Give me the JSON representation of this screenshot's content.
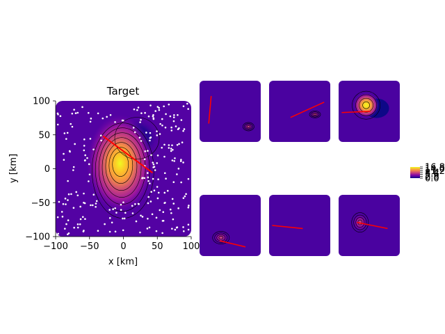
{
  "chart_data": [
    {
      "type": "heatmap",
      "title": "Target",
      "xlabel": "x [km]",
      "ylabel": "y [km]",
      "xlim": [
        -100,
        100
      ],
      "ylim": [
        -100,
        100
      ],
      "x_ticks": [
        "−100",
        "−50",
        "0",
        "50",
        "100"
      ],
      "y_ticks": [
        "100",
        "50",
        "0",
        "−50",
        "−100"
      ],
      "grid": false,
      "colormap": "plasma",
      "fault_trace": [
        [
          -30,
          48
        ],
        [
          43,
          -6
        ]
      ],
      "peak": [
        -5,
        8
      ],
      "trough": [
        20,
        45
      ],
      "station_count": 300
    },
    {
      "type": "heatmap",
      "panels": [
        {
          "fault_line": [
            [
              0.15,
              0.3
            ],
            [
              0.19,
              0.75
            ]
          ],
          "has_contours": true
        },
        {
          "fault_line": [
            [
              0.35,
              0.4
            ],
            [
              0.9,
              0.65
            ]
          ],
          "has_contours": true
        },
        {
          "fault_line": [
            [
              0.05,
              0.48
            ],
            [
              0.52,
              0.5
            ]
          ],
          "has_contours": true
        },
        {
          "fault_line": [
            [
              0.33,
              0.25
            ],
            [
              0.75,
              0.15
            ]
          ],
          "has_contours": true
        },
        {
          "fault_line": [
            [
              0.05,
              0.5
            ],
            [
              0.55,
              0.45
            ]
          ],
          "has_contours": false
        },
        {
          "fault_line": [
            [
              0.3,
              0.55
            ],
            [
              0.8,
              0.45
            ]
          ],
          "has_contours": true
        }
      ]
    }
  ],
  "colorbar": {
    "tick_labels": [
      "16.8",
      "14.0",
      "11.2",
      "8.4",
      "5.6",
      "2.8",
      "0.0"
    ]
  },
  "colors": {
    "background": "#ffffff",
    "fault": "#ff0000",
    "station": "#ffffff",
    "contour": "#000000"
  }
}
